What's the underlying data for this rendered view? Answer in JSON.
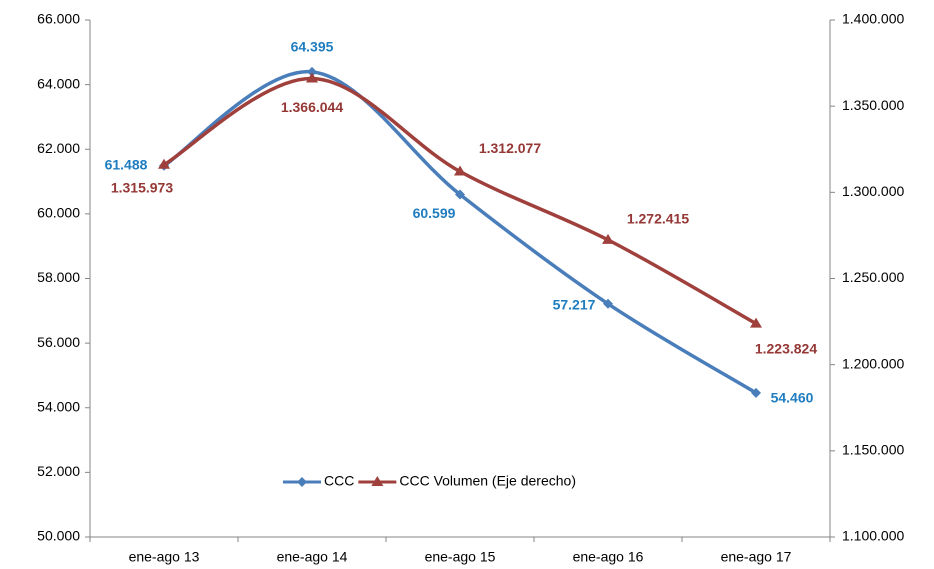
{
  "chart_data": {
    "type": "line",
    "categories": [
      "ene-ago 13",
      "ene-ago 14",
      "ene-ago 15",
      "ene-ago 16",
      "ene-ago 17"
    ],
    "series": [
      {
        "name": "CCC",
        "color": "#4a7ebb",
        "label_color": "#1f7dc0",
        "marker": "diamond",
        "axis": "y",
        "values": [
          61488,
          64395,
          60599,
          57217,
          54460
        ],
        "value_labels": [
          "61.488",
          "64.395",
          "60.599",
          "57.217",
          "54.460"
        ]
      },
      {
        "name": "CCC Volumen (Eje derecho)",
        "color": "#a0403c",
        "label_color": "#953735",
        "marker": "triangle",
        "axis": "y2",
        "values": [
          1315973,
          1366044,
          1312077,
          1272415,
          1223824
        ],
        "value_labels": [
          "1.315.973",
          "1.366.044",
          "1.312.077",
          "1.272.415",
          "1.223.824"
        ]
      }
    ],
    "ylim": [
      50000,
      66000
    ],
    "yticks": [
      {
        "value": 50000,
        "label": "50.000"
      },
      {
        "value": 52000,
        "label": "52.000"
      },
      {
        "value": 54000,
        "label": "54.000"
      },
      {
        "value": 56000,
        "label": "56.000"
      },
      {
        "value": 58000,
        "label": "58.000"
      },
      {
        "value": 60000,
        "label": "60.000"
      },
      {
        "value": 62000,
        "label": "62.000"
      },
      {
        "value": 64000,
        "label": "64.000"
      },
      {
        "value": 66000,
        "label": "66.000"
      }
    ],
    "y2lim": [
      1100000,
      1400000
    ],
    "y2ticks": [
      {
        "value": 1100000,
        "label": "1.100.000"
      },
      {
        "value": 1150000,
        "label": "1.150.000"
      },
      {
        "value": 1200000,
        "label": "1.200.000"
      },
      {
        "value": 1250000,
        "label": "1.250.000"
      },
      {
        "value": 1300000,
        "label": "1.300.000"
      },
      {
        "value": 1350000,
        "label": "1.350.000"
      },
      {
        "value": 1400000,
        "label": "1.400.000"
      }
    ],
    "legend": "bottom",
    "grid": false
  }
}
